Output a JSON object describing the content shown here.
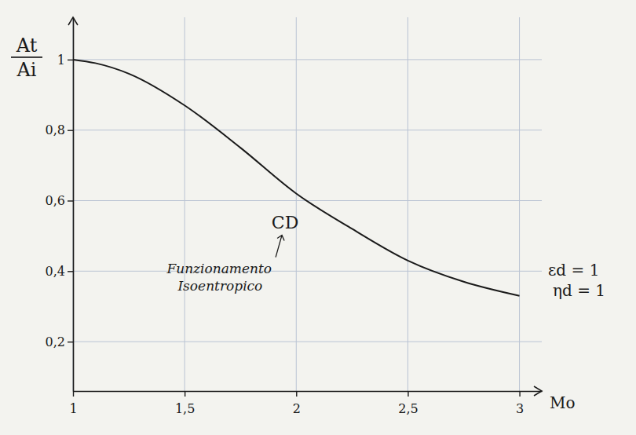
{
  "chart_data": {
    "type": "line",
    "ylabel": {
      "num": "At",
      "den": "Ai"
    },
    "xlabel": "Mo",
    "x": [
      1.0,
      1.1,
      1.25,
      1.5,
      1.75,
      2.0,
      2.25,
      2.5,
      2.75,
      3.0
    ],
    "values": [
      1.0,
      0.99,
      0.96,
      0.87,
      0.75,
      0.62,
      0.52,
      0.43,
      0.37,
      0.33
    ],
    "color": "#1a1a1a",
    "xlim": [
      1,
      3.1
    ],
    "ylim": [
      0.06,
      1.12
    ],
    "xticks": [
      1,
      {
        "value": 1.5,
        "label": "1,5"
      },
      2,
      {
        "value": 2.5,
        "label": "2,5"
      },
      3
    ],
    "yticks": [
      {
        "value": 0.2,
        "label": "0,2"
      },
      {
        "value": 0.4,
        "label": "0,4"
      },
      {
        "value": 0.6,
        "label": "0,6"
      },
      {
        "value": 0.8,
        "label": "0,8"
      },
      1
    ],
    "grid": true,
    "annotations": [
      "CD",
      "Funzionamento",
      "Isoentropico"
    ],
    "notes": [
      "εd = 1",
      "ηd = 1"
    ]
  }
}
